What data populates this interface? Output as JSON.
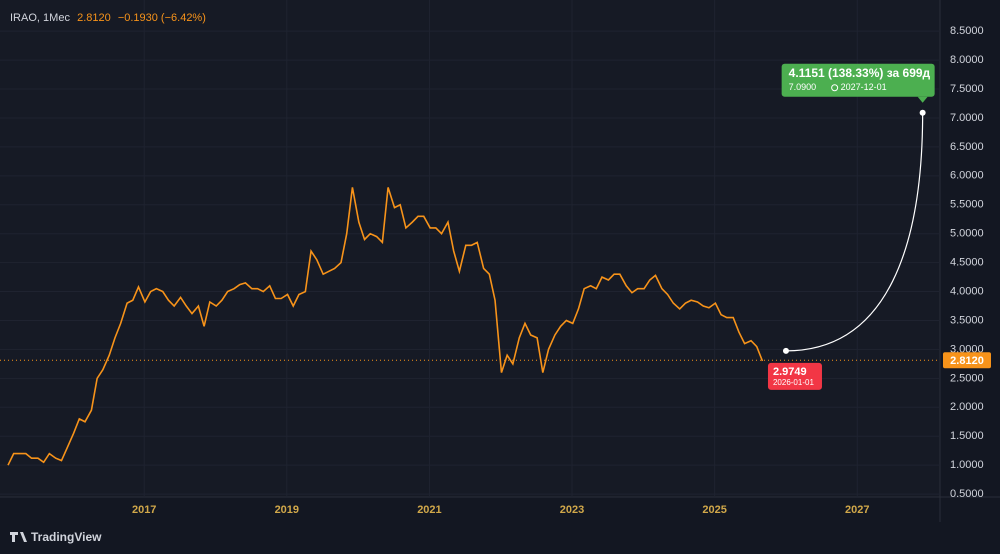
{
  "chart_data": {
    "type": "line",
    "symbol": "IRAO, 1Мес",
    "last_price": {
      "value": 2.812,
      "label": "2.8120"
    },
    "change": "−0.1930 (−6.42%)",
    "brand": "TradingView",
    "xlim": [
      2015.09,
      2028.16
    ],
    "xticks": [
      2017,
      2019,
      2021,
      2023,
      2025,
      2027
    ],
    "ylim": [
      0.45,
      8.9
    ],
    "yticks": [
      {
        "value": 0.5,
        "label": "0.5000"
      },
      {
        "value": 1,
        "label": "1.0000"
      },
      {
        "value": 1.5,
        "label": "1.5000"
      },
      {
        "value": 2,
        "label": "2.0000"
      },
      {
        "value": 2.5,
        "label": "2.5000"
      },
      {
        "value": 3,
        "label": "3.0000"
      },
      {
        "value": 3.5,
        "label": "3.5000"
      },
      {
        "value": 4,
        "label": "4.0000"
      },
      {
        "value": 4.5,
        "label": "4.5000"
      },
      {
        "value": 5,
        "label": "5.0000"
      },
      {
        "value": 5.5,
        "label": "5.5000"
      },
      {
        "value": 6,
        "label": "6.0000"
      },
      {
        "value": 6.5,
        "label": "6.5000"
      },
      {
        "value": 7,
        "label": "7.0000"
      },
      {
        "value": 7.5,
        "label": "7.5000"
      },
      {
        "value": 8,
        "label": "8.0000"
      },
      {
        "value": 8.5,
        "label": "8.5000"
      }
    ],
    "grid": true,
    "series": [
      {
        "name": "IRAO",
        "color": "#f7931a",
        "x": [
          2015.09,
          2015.17,
          2015.26,
          2015.34,
          2015.42,
          2015.51,
          2015.59,
          2015.67,
          2015.76,
          2015.84,
          2015.92,
          2016.01,
          2016.09,
          2016.17,
          2016.26,
          2016.34,
          2016.42,
          2016.51,
          2016.59,
          2016.67,
          2016.76,
          2016.84,
          2016.92,
          2017.01,
          2017.09,
          2017.17,
          2017.26,
          2017.34,
          2017.42,
          2017.51,
          2017.59,
          2017.67,
          2017.76,
          2017.84,
          2017.92,
          2018.01,
          2018.09,
          2018.17,
          2018.26,
          2018.34,
          2018.42,
          2018.51,
          2018.59,
          2018.67,
          2018.76,
          2018.84,
          2018.92,
          2019.01,
          2019.09,
          2019.17,
          2019.26,
          2019.34,
          2019.42,
          2019.51,
          2019.59,
          2019.67,
          2019.76,
          2019.84,
          2019.92,
          2020.01,
          2020.09,
          2020.17,
          2020.26,
          2020.34,
          2020.42,
          2020.51,
          2020.59,
          2020.67,
          2020.76,
          2020.84,
          2020.92,
          2021.01,
          2021.09,
          2021.17,
          2021.26,
          2021.34,
          2021.42,
          2021.51,
          2021.59,
          2021.67,
          2021.76,
          2021.84,
          2021.92,
          2022.01,
          2022.09,
          2022.17,
          2022.26,
          2022.34,
          2022.42,
          2022.51,
          2022.59,
          2022.67,
          2022.76,
          2022.84,
          2022.92,
          2023.01,
          2023.09,
          2023.17,
          2023.26,
          2023.34,
          2023.42,
          2023.51,
          2023.59,
          2023.67,
          2023.76,
          2023.84,
          2023.92,
          2024.01,
          2024.09,
          2024.17,
          2024.26,
          2024.34,
          2024.42,
          2024.51,
          2024.59,
          2024.67,
          2024.76,
          2024.84,
          2024.92,
          2025.01,
          2025.09,
          2025.17,
          2025.26,
          2025.34,
          2025.42,
          2025.51,
          2025.59,
          2025.67
        ],
        "values": [
          1.0,
          1.2,
          1.2,
          1.2,
          1.12,
          1.12,
          1.05,
          1.2,
          1.12,
          1.08,
          1.3,
          1.55,
          1.8,
          1.75,
          1.95,
          2.5,
          2.65,
          2.9,
          3.2,
          3.45,
          3.8,
          3.85,
          4.08,
          3.82,
          4.0,
          4.05,
          4.0,
          3.85,
          3.75,
          3.9,
          3.75,
          3.62,
          3.75,
          3.4,
          3.82,
          3.75,
          3.85,
          4.0,
          4.05,
          4.12,
          4.15,
          4.05,
          4.05,
          4.0,
          4.1,
          3.88,
          3.88,
          3.95,
          3.75,
          3.95,
          4.0,
          4.7,
          4.55,
          4.3,
          4.35,
          4.4,
          4.5,
          5.0,
          5.8,
          5.2,
          4.9,
          5.0,
          4.95,
          4.85,
          5.8,
          5.45,
          5.5,
          5.1,
          5.2,
          5.3,
          5.3,
          5.1,
          5.1,
          5.0,
          5.2,
          4.7,
          4.35,
          4.8,
          4.8,
          4.85,
          4.4,
          4.3,
          3.85,
          2.6,
          2.9,
          2.75,
          3.2,
          3.45,
          3.25,
          3.2,
          2.6,
          3.0,
          3.25,
          3.4,
          3.5,
          3.45,
          3.7,
          4.05,
          4.1,
          4.05,
          4.25,
          4.2,
          4.3,
          4.3,
          4.1,
          3.98,
          4.05,
          4.05,
          4.2,
          4.28,
          4.05,
          3.95,
          3.8,
          3.7,
          3.8,
          3.85,
          3.82,
          3.75,
          3.72,
          3.8,
          3.6,
          3.55,
          3.55,
          3.3,
          3.1,
          3.15,
          3.05,
          2.8
        ]
      }
    ],
    "forecast": {
      "text": "4.1151 (138.33%) за 699д",
      "start": {
        "value": 2.9749,
        "date": "2026-01-01"
      },
      "end": {
        "value": {
          "value": 7.09,
          "label": "7.0900"
        },
        "date": "2027-12-01"
      }
    }
  }
}
